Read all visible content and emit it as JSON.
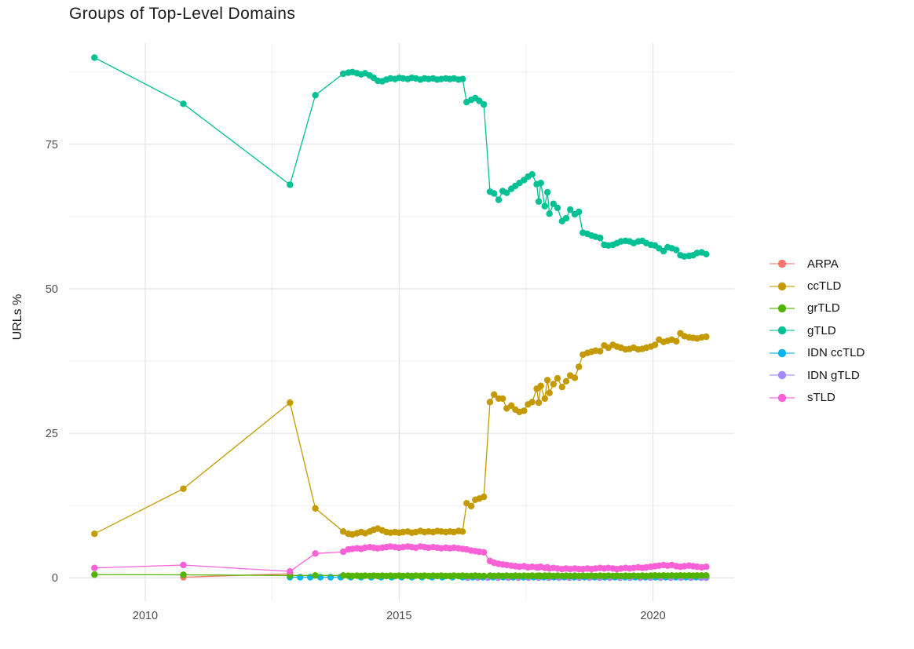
{
  "title": "Groups of Top-Level Domains",
  "chart_data": {
    "type": "line",
    "title": "Groups of Top-Level Domains",
    "xlabel": "",
    "ylabel": "URLs %",
    "x_range": [
      2008.5,
      2021.6
    ],
    "y_range": [
      -1.6,
      92.5
    ],
    "grid": true,
    "legend_position": "right",
    "x_ticks": {
      "major": [
        2010,
        2015,
        2020
      ],
      "minor": [
        2012.5,
        2017.5
      ],
      "labels": [
        "2010",
        "2015",
        "2020"
      ]
    },
    "y_ticks": {
      "major": [
        0,
        25,
        50,
        75
      ],
      "minor": [
        12.5,
        37.5,
        62.5,
        87.5
      ],
      "labels": [
        "0",
        "25",
        "50",
        "75"
      ]
    },
    "draw_order": [
      "ARPA",
      "IDN ccTLD",
      "IDN gTLD",
      "grTLD",
      "ccTLD",
      "gTLD",
      "sTLD"
    ],
    "series": [
      {
        "name": "ARPA",
        "color": "#F8766D",
        "x": [
          2010.75,
          2012.85
        ],
        "y": [
          0.1,
          0.7
        ]
      },
      {
        "name": "ccTLD",
        "color": "#C49A00",
        "x": [
          2009.0,
          2010.75,
          2012.85,
          2013.35,
          2013.9,
          2014.0,
          2014.08,
          2014.17,
          2014.25,
          2014.33,
          2014.42,
          2014.5,
          2014.58,
          2014.67,
          2014.75,
          2014.83,
          2014.92,
          2015.0,
          2015.08,
          2015.17,
          2015.25,
          2015.33,
          2015.42,
          2015.5,
          2015.58,
          2015.67,
          2015.75,
          2015.83,
          2015.92,
          2016.0,
          2016.08,
          2016.17,
          2016.25,
          2016.33,
          2016.42,
          2016.5,
          2016.58,
          2016.67,
          2016.79,
          2016.87,
          2016.96,
          2017.04,
          2017.12,
          2017.21,
          2017.29,
          2017.37,
          2017.46,
          2017.54,
          2017.62,
          2017.71,
          2017.75,
          2017.79,
          2017.87,
          2017.92,
          2017.96,
          2018.04,
          2018.12,
          2018.21,
          2018.29,
          2018.37,
          2018.46,
          2018.54,
          2018.62,
          2018.71,
          2018.79,
          2018.87,
          2018.96,
          2019.04,
          2019.12,
          2019.21,
          2019.29,
          2019.37,
          2019.46,
          2019.54,
          2019.62,
          2019.71,
          2019.79,
          2019.87,
          2019.96,
          2020.04,
          2020.12,
          2020.21,
          2020.29,
          2020.37,
          2020.46,
          2020.54,
          2020.62,
          2020.71,
          2020.79,
          2020.87,
          2020.96,
          2021.05
        ],
        "y": [
          7.6,
          15.4,
          30.3,
          12.0,
          8.0,
          7.6,
          7.5,
          7.7,
          7.9,
          7.7,
          8.0,
          8.3,
          8.5,
          8.2,
          7.9,
          7.8,
          7.9,
          7.8,
          7.9,
          8.0,
          7.8,
          7.9,
          8.1,
          7.9,
          8.0,
          7.9,
          8.1,
          8.0,
          7.9,
          8.0,
          7.9,
          8.1,
          8.0,
          12.9,
          12.4,
          13.5,
          13.7,
          14.0,
          30.4,
          31.7,
          31.0,
          31.0,
          29.3,
          29.8,
          29.1,
          28.7,
          28.9,
          30.0,
          30.4,
          32.7,
          30.3,
          33.2,
          31.0,
          34.2,
          32.0,
          33.5,
          34.5,
          33.0,
          34.0,
          35.0,
          34.6,
          36.5,
          38.6,
          38.9,
          39.1,
          39.3,
          39.2,
          40.2,
          39.8,
          40.3,
          40.0,
          39.8,
          39.5,
          39.6,
          39.8,
          39.5,
          39.6,
          39.8,
          40.0,
          40.3,
          41.2,
          40.8,
          41.0,
          41.2,
          40.9,
          42.3,
          41.8,
          41.6,
          41.5,
          41.4,
          41.6,
          41.7
        ]
      },
      {
        "name": "grTLD",
        "color": "#53B400",
        "x": [
          2009.0,
          2010.75,
          2012.85,
          2013.35,
          2013.9,
          2014.0,
          2014.08,
          2014.17,
          2014.25,
          2014.33,
          2014.42,
          2014.5,
          2014.58,
          2014.67,
          2014.75,
          2014.83,
          2014.92,
          2015.0,
          2015.08,
          2015.17,
          2015.25,
          2015.33,
          2015.42,
          2015.5,
          2015.58,
          2015.67,
          2015.75,
          2015.83,
          2015.92,
          2016.0,
          2016.08,
          2016.17,
          2016.25,
          2016.33,
          2016.42,
          2016.5,
          2016.58,
          2016.67,
          2016.79,
          2016.87,
          2016.96,
          2017.04,
          2017.12,
          2017.21,
          2017.29,
          2017.37,
          2017.46,
          2017.54,
          2017.62,
          2017.71,
          2017.75,
          2017.79,
          2017.87,
          2017.92,
          2017.96,
          2018.04,
          2018.12,
          2018.21,
          2018.29,
          2018.37,
          2018.46,
          2018.54,
          2018.62,
          2018.71,
          2018.79,
          2018.87,
          2018.96,
          2019.04,
          2019.12,
          2019.21,
          2019.29,
          2019.37,
          2019.46,
          2019.54,
          2019.62,
          2019.71,
          2019.79,
          2019.87,
          2019.96,
          2020.04,
          2020.12,
          2020.21,
          2020.29,
          2020.37,
          2020.46,
          2020.54,
          2020.62,
          2020.71,
          2020.79,
          2020.87,
          2020.96,
          2021.05
        ],
        "y": [
          0.55,
          0.5,
          0.4,
          0.4,
          0.4,
          0.35,
          0.3,
          0.35,
          0.3,
          0.35,
          0.3,
          0.35,
          0.3,
          0.35,
          0.3,
          0.35,
          0.3,
          0.35,
          0.3,
          0.35,
          0.3,
          0.35,
          0.3,
          0.35,
          0.3,
          0.35,
          0.3,
          0.35,
          0.3,
          0.3,
          0.35,
          0.3,
          0.35,
          0.3,
          0.3,
          0.35,
          0.3,
          0.3,
          0.35,
          0.3,
          0.35,
          0.3,
          0.35,
          0.3,
          0.35,
          0.3,
          0.35,
          0.3,
          0.35,
          0.3,
          0.35,
          0.3,
          0.35,
          0.3,
          0.35,
          0.3,
          0.35,
          0.3,
          0.35,
          0.3,
          0.35,
          0.3,
          0.35,
          0.3,
          0.35,
          0.3,
          0.35,
          0.3,
          0.35,
          0.3,
          0.35,
          0.3,
          0.35,
          0.3,
          0.35,
          0.3,
          0.35,
          0.3,
          0.35,
          0.4,
          0.35,
          0.4,
          0.35,
          0.4,
          0.35,
          0.4,
          0.35,
          0.4,
          0.35,
          0.4,
          0.4,
          0.4
        ]
      },
      {
        "name": "gTLD",
        "color": "#00C094",
        "x": [
          2009.0,
          2010.75,
          2012.85,
          2013.35,
          2013.9,
          2014.0,
          2014.08,
          2014.17,
          2014.25,
          2014.33,
          2014.42,
          2014.5,
          2014.58,
          2014.67,
          2014.75,
          2014.83,
          2014.92,
          2015.0,
          2015.08,
          2015.17,
          2015.25,
          2015.33,
          2015.42,
          2015.5,
          2015.58,
          2015.67,
          2015.75,
          2015.83,
          2015.92,
          2016.0,
          2016.08,
          2016.17,
          2016.25,
          2016.33,
          2016.42,
          2016.5,
          2016.58,
          2016.67,
          2016.79,
          2016.87,
          2016.96,
          2017.04,
          2017.12,
          2017.21,
          2017.29,
          2017.37,
          2017.46,
          2017.54,
          2017.62,
          2017.71,
          2017.75,
          2017.79,
          2017.87,
          2017.92,
          2017.96,
          2018.04,
          2018.12,
          2018.21,
          2018.29,
          2018.37,
          2018.46,
          2018.54,
          2018.62,
          2018.71,
          2018.79,
          2018.87,
          2018.96,
          2019.04,
          2019.12,
          2019.21,
          2019.29,
          2019.37,
          2019.46,
          2019.54,
          2019.62,
          2019.71,
          2019.79,
          2019.87,
          2019.96,
          2020.04,
          2020.12,
          2020.21,
          2020.29,
          2020.37,
          2020.46,
          2020.54,
          2020.62,
          2020.71,
          2020.79,
          2020.87,
          2020.96,
          2021.05
        ],
        "y": [
          90.0,
          82.0,
          68.0,
          83.5,
          87.2,
          87.4,
          87.5,
          87.3,
          87.1,
          87.3,
          86.9,
          86.5,
          86.0,
          85.9,
          86.2,
          86.4,
          86.3,
          86.5,
          86.4,
          86.3,
          86.5,
          86.4,
          86.2,
          86.4,
          86.3,
          86.4,
          86.2,
          86.3,
          86.4,
          86.3,
          86.4,
          86.2,
          86.3,
          82.3,
          82.7,
          83.0,
          82.5,
          81.9,
          66.8,
          66.5,
          65.4,
          66.9,
          66.6,
          67.3,
          67.8,
          68.3,
          68.8,
          69.4,
          69.8,
          68.1,
          65.1,
          68.3,
          64.3,
          66.7,
          63.0,
          64.7,
          64.0,
          61.7,
          62.2,
          63.7,
          62.9,
          63.3,
          59.7,
          59.5,
          59.2,
          59.0,
          58.8,
          57.6,
          57.5,
          57.6,
          57.9,
          58.2,
          58.3,
          58.2,
          57.9,
          58.2,
          58.3,
          57.9,
          57.6,
          57.5,
          57.0,
          56.5,
          57.2,
          57.0,
          56.7,
          55.8,
          55.6,
          55.7,
          55.8,
          56.2,
          56.3,
          56.0
        ]
      },
      {
        "name": "IDN ccTLD",
        "color": "#00B6EB",
        "x": [
          2012.85,
          2013.05,
          2013.25,
          2013.45,
          2013.65,
          2013.85,
          2014.05,
          2014.25,
          2014.45,
          2014.65,
          2014.85,
          2015.05,
          2015.25,
          2015.45,
          2015.65,
          2015.85,
          2016.05,
          2016.25,
          2016.45,
          2016.65,
          2016.85,
          2017.05,
          2017.25,
          2017.45,
          2017.65,
          2017.85,
          2018.05,
          2018.25,
          2018.45,
          2018.65,
          2018.85,
          2019.05,
          2019.25,
          2019.45,
          2019.65,
          2019.85,
          2020.05,
          2020.25,
          2020.45,
          2020.65,
          2020.85,
          2021.05
        ],
        "y": [
          0.1,
          0.1,
          0.1,
          0.1,
          0.1,
          0.1,
          0.1,
          0.1,
          0.1,
          0.1,
          0.1,
          0.1,
          0.1,
          0.1,
          0.1,
          0.1,
          0.1,
          0.1,
          0.1,
          0.1,
          0.1,
          0.1,
          0.1,
          0.1,
          0.1,
          0.1,
          0.1,
          0.1,
          0.1,
          0.1,
          0.1,
          0.1,
          0.1,
          0.1,
          0.1,
          0.1,
          0.1,
          0.1,
          0.1,
          0.1,
          0.1,
          0.1
        ]
      },
      {
        "name": "IDN gTLD",
        "color": "#A58AFF",
        "x": [
          2016.35,
          2016.55,
          2016.75,
          2016.95,
          2017.15,
          2017.35,
          2017.55,
          2017.75,
          2017.95,
          2018.15,
          2018.35,
          2018.55,
          2018.75,
          2018.95,
          2019.15,
          2019.35,
          2019.55,
          2019.75,
          2019.95,
          2020.15,
          2020.35,
          2020.55,
          2020.75,
          2020.95,
          2021.05
        ],
        "y": [
          0.0,
          0.0,
          0.0,
          0.0,
          0.0,
          0.0,
          0.0,
          0.0,
          0.0,
          0.0,
          0.0,
          0.0,
          0.0,
          0.0,
          0.0,
          0.0,
          0.0,
          0.0,
          0.0,
          0.0,
          0.0,
          0.0,
          0.0,
          0.0,
          0.0
        ]
      },
      {
        "name": "sTLD",
        "color": "#FB61D7",
        "x": [
          2009.0,
          2010.75,
          2012.85,
          2013.35,
          2013.9,
          2014.0,
          2014.08,
          2014.17,
          2014.25,
          2014.33,
          2014.42,
          2014.5,
          2014.58,
          2014.67,
          2014.75,
          2014.83,
          2014.92,
          2015.0,
          2015.08,
          2015.17,
          2015.25,
          2015.33,
          2015.42,
          2015.5,
          2015.58,
          2015.67,
          2015.75,
          2015.83,
          2015.92,
          2016.0,
          2016.08,
          2016.17,
          2016.25,
          2016.33,
          2016.42,
          2016.5,
          2016.58,
          2016.67,
          2016.79,
          2016.87,
          2016.96,
          2017.04,
          2017.12,
          2017.21,
          2017.29,
          2017.37,
          2017.46,
          2017.54,
          2017.62,
          2017.71,
          2017.75,
          2017.79,
          2017.87,
          2017.92,
          2017.96,
          2018.04,
          2018.12,
          2018.21,
          2018.29,
          2018.37,
          2018.46,
          2018.54,
          2018.62,
          2018.71,
          2018.79,
          2018.87,
          2018.96,
          2019.04,
          2019.12,
          2019.21,
          2019.29,
          2019.37,
          2019.46,
          2019.54,
          2019.62,
          2019.71,
          2019.79,
          2019.87,
          2019.96,
          2020.04,
          2020.12,
          2020.21,
          2020.29,
          2020.37,
          2020.46,
          2020.54,
          2020.62,
          2020.71,
          2020.79,
          2020.87,
          2020.96,
          2021.05
        ],
        "y": [
          1.7,
          2.2,
          1.1,
          4.2,
          4.5,
          4.9,
          5.0,
          5.1,
          5.0,
          5.2,
          5.3,
          5.2,
          5.1,
          5.2,
          5.3,
          5.4,
          5.3,
          5.2,
          5.3,
          5.4,
          5.3,
          5.2,
          5.4,
          5.3,
          5.2,
          5.3,
          5.2,
          5.1,
          5.2,
          5.1,
          5.2,
          5.1,
          5.0,
          4.9,
          4.7,
          4.6,
          4.5,
          4.4,
          2.9,
          2.6,
          2.4,
          2.3,
          2.2,
          2.1,
          2.0,
          1.9,
          2.0,
          1.8,
          1.9,
          1.8,
          1.8,
          1.9,
          1.7,
          1.8,
          1.6,
          1.7,
          1.6,
          1.5,
          1.6,
          1.5,
          1.6,
          1.5,
          1.5,
          1.6,
          1.5,
          1.6,
          1.7,
          1.6,
          1.7,
          1.6,
          1.5,
          1.6,
          1.7,
          1.6,
          1.7,
          1.8,
          1.7,
          1.8,
          1.9,
          2.0,
          2.1,
          2.2,
          2.1,
          2.2,
          2.0,
          1.9,
          2.0,
          2.1,
          2.0,
          1.9,
          1.8,
          1.9
        ]
      }
    ]
  },
  "legend": {
    "entries": [
      {
        "label": "ARPA",
        "color": "#F8766D"
      },
      {
        "label": "ccTLD",
        "color": "#C49A00"
      },
      {
        "label": "grTLD",
        "color": "#53B400"
      },
      {
        "label": "gTLD",
        "color": "#00C094"
      },
      {
        "label": "IDN ccTLD",
        "color": "#00B6EB"
      },
      {
        "label": "IDN gTLD",
        "color": "#A58AFF"
      },
      {
        "label": "sTLD",
        "color": "#FB61D7"
      }
    ]
  },
  "style": {
    "grid_major_color": "#e4e4e4",
    "grid_minor_color": "#f0f0f0",
    "tick_label_color": "#4d4d4d",
    "text_color": "#1a1a1a",
    "background": "#ffffff"
  }
}
